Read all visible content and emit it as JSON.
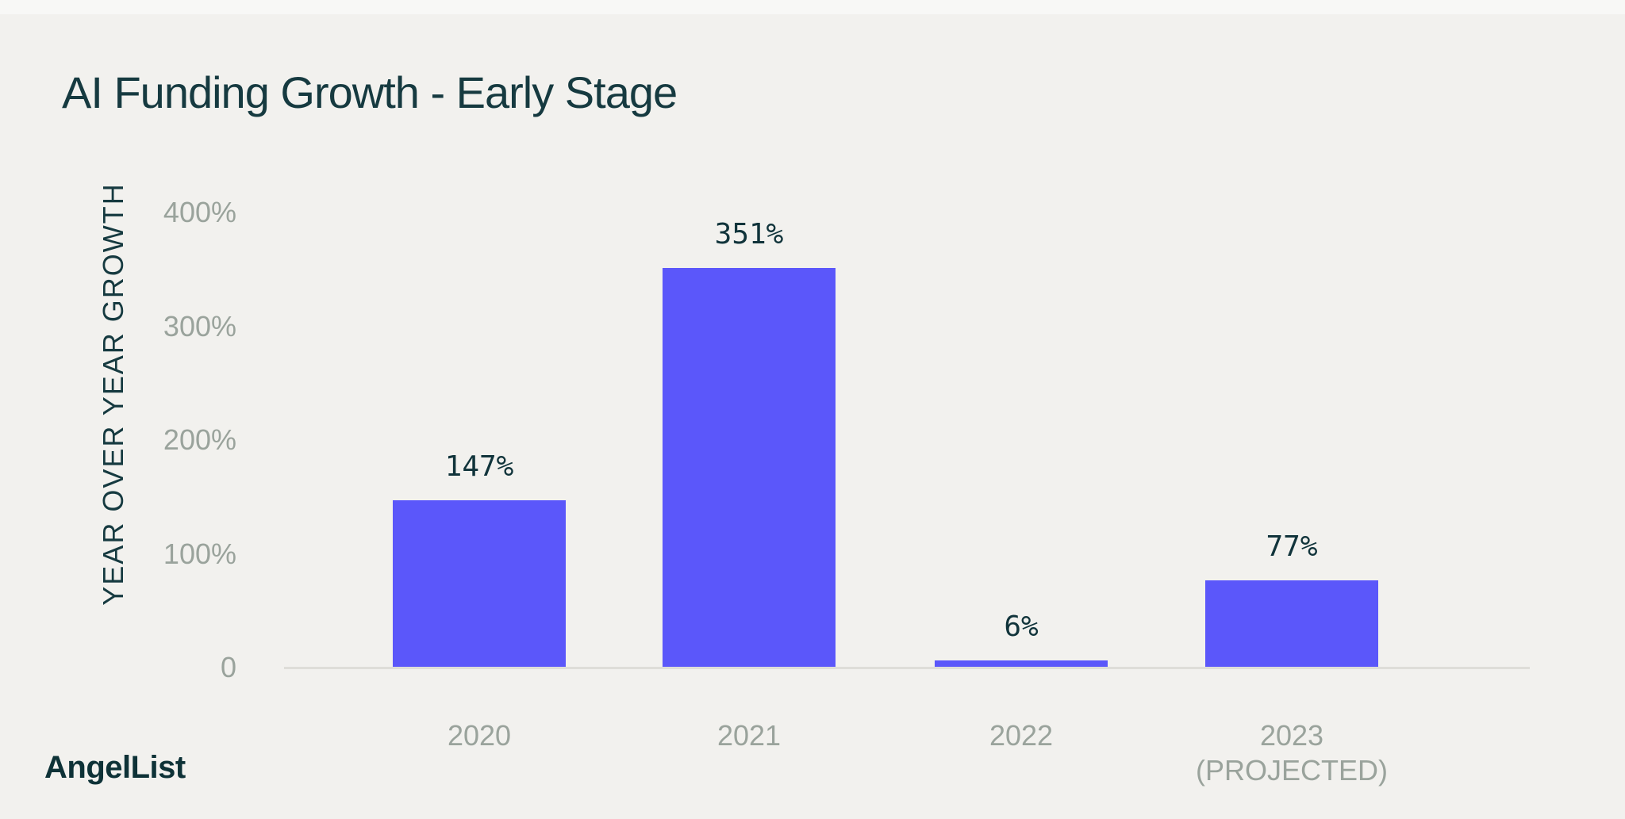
{
  "header": {
    "title": "AI Funding Growth - Early Stage"
  },
  "footer": {
    "brand": "AngelList"
  },
  "chart_data": {
    "type": "bar",
    "title": "AI Funding Growth - Early Stage",
    "xlabel": "",
    "ylabel": "YEAR OVER YEAR GROWTH",
    "ylim": [
      0,
      400
    ],
    "grid": false,
    "legend_position": "none",
    "bar_color": "#5B57FA",
    "background_color": "#F2F1EE",
    "yticks": [
      {
        "value": 400,
        "label": "400%"
      },
      {
        "value": 300,
        "label": "300%"
      },
      {
        "value": 200,
        "label": "200%"
      },
      {
        "value": 100,
        "label": "100%"
      },
      {
        "value": 0,
        "label": "0"
      }
    ],
    "bars": [
      {
        "category": "2020",
        "sublabel": "",
        "value": 147,
        "value_label": "147%"
      },
      {
        "category": "2021",
        "sublabel": "",
        "value": 351,
        "value_label": "351%"
      },
      {
        "category": "2022",
        "sublabel": "",
        "value": 6,
        "value_label": "6%"
      },
      {
        "category": "2023",
        "sublabel": "(PROJECTED)",
        "value": 77,
        "value_label": "77%"
      }
    ]
  },
  "colors": {
    "background": "#F2F1EE",
    "top_strip": "#F8F8F6",
    "bar": "#5B57FA",
    "title_text": "#163A40",
    "value_text": "#11343B",
    "axis_text": "#9AA39C",
    "axis_line": "#DEDDD9",
    "brand_text": "#0E3237"
  }
}
